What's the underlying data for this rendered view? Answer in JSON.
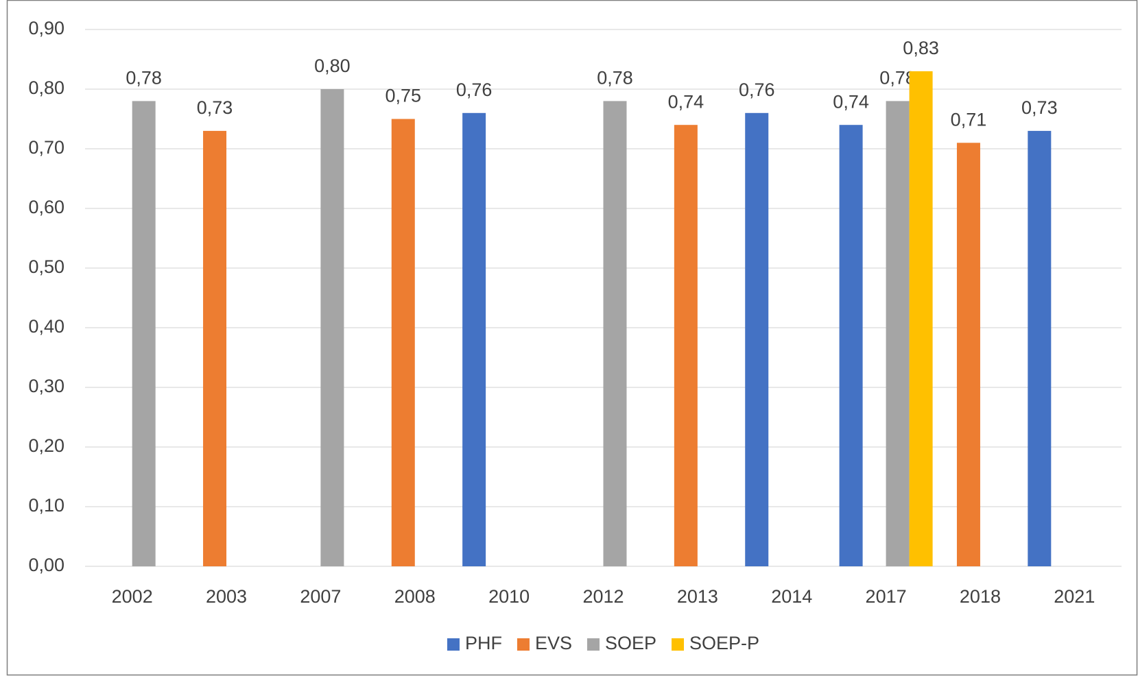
{
  "chart_data": {
    "type": "bar",
    "categories": [
      "2002",
      "2003",
      "2007",
      "2008",
      "2010",
      "2012",
      "2013",
      "2014",
      "2017",
      "2018",
      "2021"
    ],
    "series": [
      {
        "name": "PHF",
        "color": "#4472c4",
        "values": [
          null,
          null,
          null,
          null,
          0.76,
          null,
          null,
          0.76,
          0.74,
          null,
          0.73
        ],
        "value_labels": [
          null,
          null,
          null,
          null,
          "0,76",
          null,
          null,
          "0,76",
          "0,74",
          null,
          "0,73"
        ]
      },
      {
        "name": "EVS",
        "color": "#ed7d31",
        "values": [
          null,
          0.73,
          null,
          0.75,
          null,
          null,
          0.74,
          null,
          null,
          0.71,
          null
        ],
        "value_labels": [
          null,
          "0,73",
          null,
          "0,75",
          null,
          null,
          "0,74",
          null,
          null,
          "0,71",
          null
        ]
      },
      {
        "name": "SOEP",
        "color": "#a5a5a5",
        "values": [
          0.78,
          null,
          0.8,
          null,
          null,
          0.78,
          null,
          null,
          0.78,
          null,
          null
        ],
        "value_labels": [
          "0,78",
          null,
          "0,80",
          null,
          null,
          "0,78",
          null,
          null,
          "0,78",
          null,
          null
        ]
      },
      {
        "name": "SOEP-P",
        "color": "#ffc000",
        "values": [
          null,
          null,
          null,
          null,
          null,
          null,
          null,
          null,
          0.83,
          null,
          null
        ],
        "value_labels": [
          null,
          null,
          null,
          null,
          null,
          null,
          null,
          null,
          "0,83",
          null,
          null
        ]
      }
    ],
    "ylim": [
      0,
      0.9
    ],
    "yticks": [
      {
        "value": 0,
        "label": "0,00"
      },
      {
        "value": 0.1,
        "label": "0,10"
      },
      {
        "value": 0.2,
        "label": "0,20"
      },
      {
        "value": 0.3,
        "label": "0,30"
      },
      {
        "value": 0.4,
        "label": "0,40"
      },
      {
        "value": 0.5,
        "label": "0,50"
      },
      {
        "value": 0.6,
        "label": "0,60"
      },
      {
        "value": 0.7,
        "label": "0,70"
      },
      {
        "value": 0.8,
        "label": "0,80"
      },
      {
        "value": 0.9,
        "label": "0,90"
      }
    ],
    "grid": true,
    "legend": "bottom"
  }
}
